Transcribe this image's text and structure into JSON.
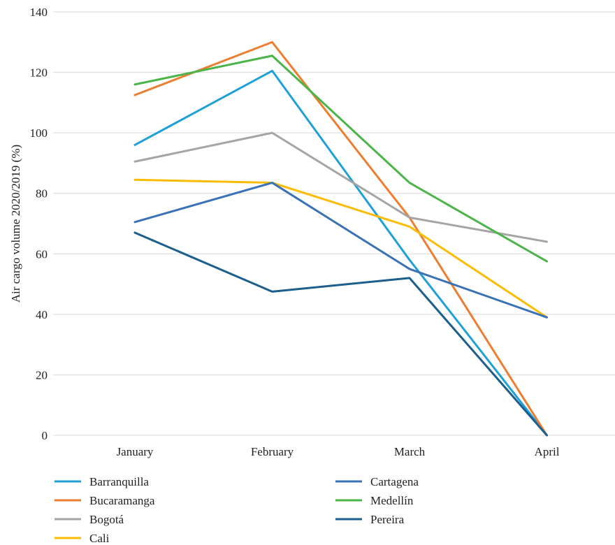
{
  "chart_data": {
    "type": "line",
    "title": "",
    "xlabel": "",
    "ylabel": "Air cargo volume 2020/2019 (%)",
    "categories": [
      "January",
      "February",
      "March",
      "April"
    ],
    "ylim": [
      0,
      140
    ],
    "yticks": [
      0,
      20,
      40,
      60,
      80,
      100,
      120,
      140
    ],
    "grid": true,
    "legend_position": "bottom",
    "series": [
      {
        "name": "Barranquilla",
        "color": "#1fa0d8",
        "values": [
          96,
          120.5,
          58,
          0
        ]
      },
      {
        "name": "Bucaramanga",
        "color": "#ed7d31",
        "values": [
          112.5,
          130,
          72,
          0
        ]
      },
      {
        "name": "Bogotá",
        "color": "#a5a5a5",
        "values": [
          90.5,
          100,
          72,
          64
        ]
      },
      {
        "name": "Cali",
        "color": "#fbbc05",
        "values": [
          84.5,
          83.5,
          69,
          39
        ]
      },
      {
        "name": "Cartagena",
        "color": "#3a72b8",
        "values": [
          70.5,
          83.5,
          55,
          39
        ]
      },
      {
        "name": "Medellín",
        "color": "#4cb54a",
        "values": [
          116,
          125.5,
          83.5,
          57.5
        ]
      },
      {
        "name": "Pereira",
        "color": "#1c5f8c",
        "values": [
          67,
          47.5,
          52,
          0
        ]
      }
    ]
  }
}
